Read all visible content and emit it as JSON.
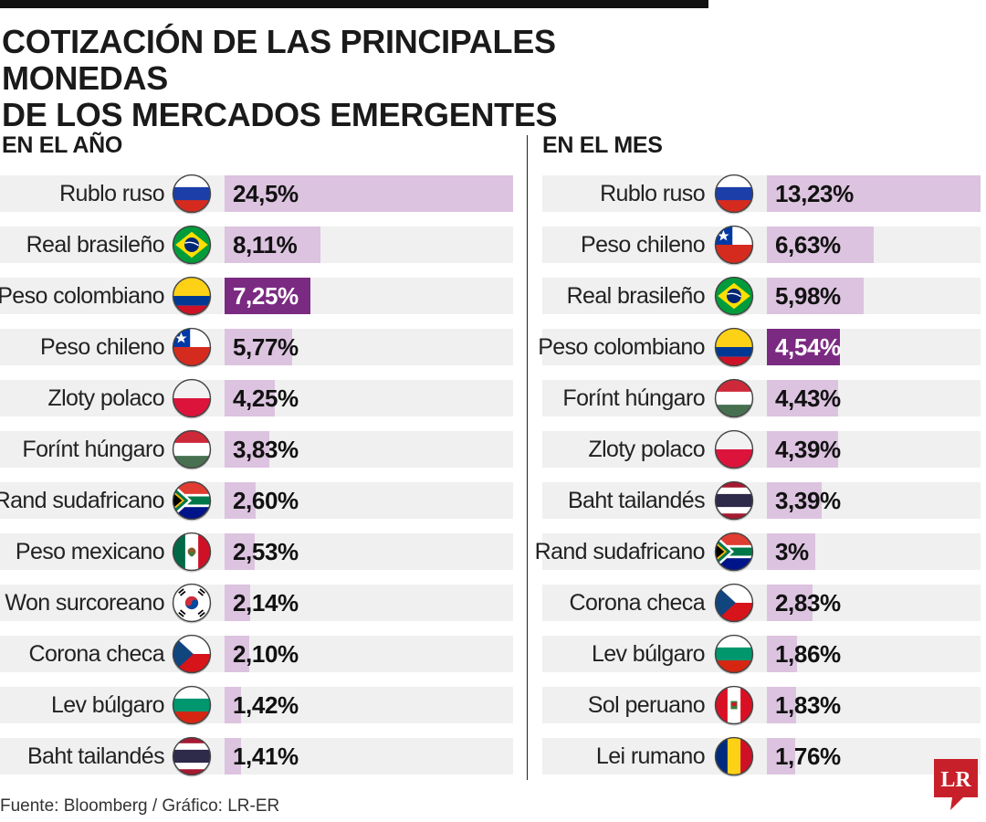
{
  "title_line1": "COTIZACIÓN DE LAS PRINCIPALES MONEDAS",
  "title_line2": "DE LOS MERCADOS EMERGENTES",
  "source": "Fuente: Bloomberg / Gráfico: LR-ER",
  "logo_text": "LR",
  "colors": {
    "bar": "#dcc3df",
    "highlight": "#7b2a82",
    "row_bg": "#f0f0f0",
    "logo": "#c8202a"
  },
  "chart_data": [
    {
      "type": "bar",
      "orientation": "horizontal",
      "title": "EN EL AÑO",
      "unit": "%",
      "highlight": "Peso colombiano",
      "categories": [
        "Rublo ruso",
        "Real brasileño",
        "Peso colombiano",
        "Peso chileno",
        "Zloty polaco",
        "Forínt húngaro",
        "Rand sudafricano",
        "Peso mexicano",
        "Won surcoreano",
        "Corona checa",
        "Lev búlgaro",
        "Baht tailandés"
      ],
      "values": [
        24.5,
        8.11,
        7.25,
        5.77,
        4.25,
        3.83,
        2.6,
        2.53,
        2.14,
        2.1,
        1.42,
        1.41
      ],
      "value_labels": [
        "24,5%",
        "8,11%",
        "7,25%",
        "5,77%",
        "4,25%",
        "3,83%",
        "2,60%",
        "2,53%",
        "2,14%",
        "2,10%",
        "1,42%",
        "1,41%"
      ],
      "flag_icons": [
        "russia-flag-icon",
        "brazil-flag-icon",
        "colombia-flag-icon",
        "chile-flag-icon",
        "poland-flag-icon",
        "hungary-flag-icon",
        "south-africa-flag-icon",
        "mexico-flag-icon",
        "south-korea-flag-icon",
        "czech-flag-icon",
        "bulgaria-flag-icon",
        "thailand-flag-icon"
      ],
      "xlim": [
        0,
        24.5
      ]
    },
    {
      "type": "bar",
      "orientation": "horizontal",
      "title": "EN EL MES",
      "unit": "%",
      "highlight": "Peso colombiano",
      "categories": [
        "Rublo ruso",
        "Peso chileno",
        "Real brasileño",
        "Peso colombiano",
        "Forínt húngaro",
        "Zloty polaco",
        "Baht tailandés",
        "Rand sudafricano",
        "Corona checa",
        "Lev búlgaro",
        "Sol peruano",
        "Lei rumano"
      ],
      "values": [
        13.23,
        6.63,
        5.98,
        4.54,
        4.43,
        4.39,
        3.39,
        3.0,
        2.83,
        1.86,
        1.83,
        1.76
      ],
      "value_labels": [
        "13,23%",
        "6,63%",
        "5,98%",
        "4,54%",
        "4,43%",
        "4,39%",
        "3,39%",
        "3%",
        "2,83%",
        "1,86%",
        "1,83%",
        "1,76%"
      ],
      "flag_icons": [
        "russia-flag-icon",
        "chile-flag-icon",
        "brazil-flag-icon",
        "colombia-flag-icon",
        "hungary-flag-icon",
        "poland-flag-icon",
        "thailand-flag-icon",
        "south-africa-flag-icon",
        "czech-flag-icon",
        "bulgaria-flag-icon",
        "peru-flag-icon",
        "romania-flag-icon"
      ],
      "xlim": [
        0,
        13.23
      ]
    }
  ]
}
